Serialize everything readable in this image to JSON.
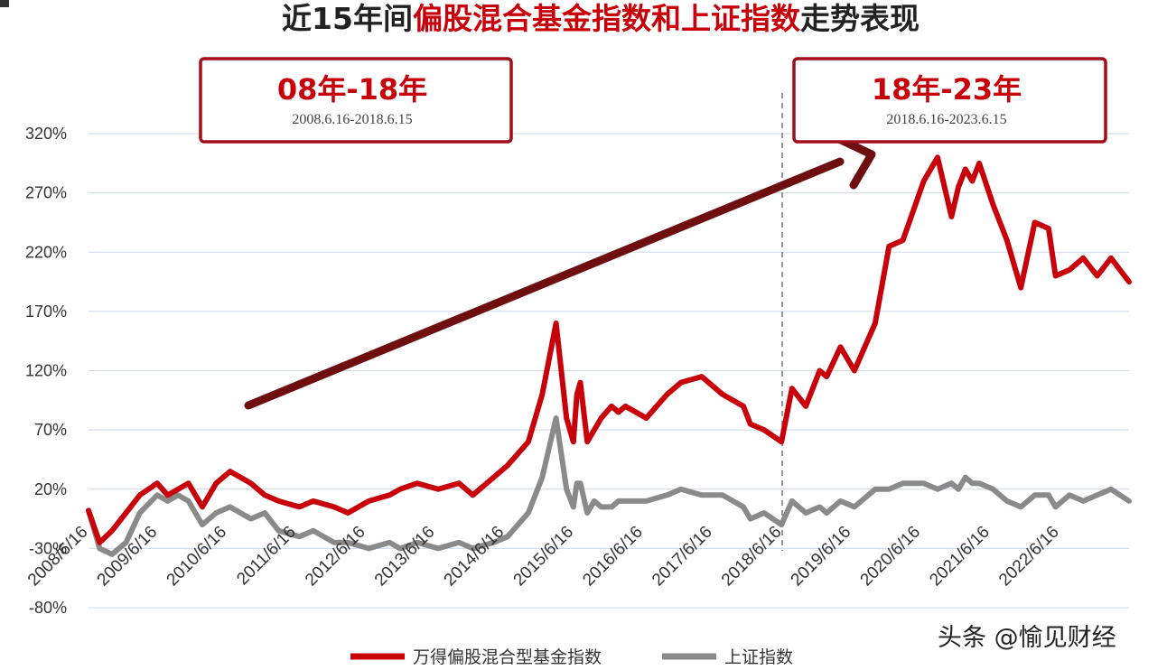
{
  "title": {
    "part1": "近15年间",
    "part2": "偏股混合基金指数和上证指数",
    "part3": "走势表现"
  },
  "annotations": {
    "period1": {
      "label": "08年-18年",
      "range": "2008.6.16-2018.6.15"
    },
    "period2": {
      "label": "18年-23年",
      "range": "2018.6.16-2023.6.15"
    }
  },
  "watermark": "头条 @愉见财经",
  "colors": {
    "fund": "#c8000a",
    "index": "#8a8a8a",
    "arrow": "#6e0e0e",
    "box": "#a00f1a",
    "grid": "#cfd8e3"
  },
  "chart_data": {
    "type": "line",
    "yticks": [
      "-80%",
      "-30%",
      "20%",
      "70%",
      "120%",
      "170%",
      "220%",
      "270%",
      "320%"
    ],
    "ylim": [
      -80,
      320
    ],
    "xticks": [
      "2008/6/16",
      "2009/6/16",
      "2010/6/16",
      "2011/6/16",
      "2012/6/16",
      "2013/6/16",
      "2014/6/16",
      "2015/6/16",
      "2016/6/16",
      "2017/6/16",
      "2018/6/16",
      "2019/6/16",
      "2020/6/16",
      "2021/6/16",
      "2022/6/16"
    ],
    "xlim": [
      2008.46,
      2023.46
    ],
    "divider_x": 2018.46,
    "grid": true,
    "legend_position": "bottom",
    "series": [
      {
        "name": "万得偏股混合型基金指数",
        "x": [
          2008.46,
          2008.62,
          2008.8,
          2009.0,
          2009.2,
          2009.45,
          2009.6,
          2009.75,
          2009.9,
          2010.1,
          2010.3,
          2010.5,
          2010.8,
          2011.0,
          2011.2,
          2011.5,
          2011.7,
          2012.0,
          2012.2,
          2012.5,
          2012.8,
          2012.95,
          2013.2,
          2013.5,
          2013.8,
          2014.0,
          2014.3,
          2014.5,
          2014.8,
          2015.0,
          2015.2,
          2015.35,
          2015.45,
          2015.5,
          2015.55,
          2015.65,
          2015.75,
          2015.85,
          2016.0,
          2016.1,
          2016.2,
          2016.5,
          2016.8,
          2017.0,
          2017.3,
          2017.6,
          2017.9,
          2018.0,
          2018.2,
          2018.45,
          2018.6,
          2018.8,
          2019.0,
          2019.1,
          2019.3,
          2019.5,
          2019.8,
          2020.0,
          2020.2,
          2020.5,
          2020.7,
          2020.9,
          2021.0,
          2021.1,
          2021.2,
          2021.3,
          2021.5,
          2021.7,
          2021.9,
          2022.1,
          2022.3,
          2022.4,
          2022.6,
          2022.8,
          2023.0,
          2023.2,
          2023.46
        ],
        "values": [
          2,
          -25,
          -15,
          0,
          15,
          25,
          15,
          20,
          25,
          5,
          25,
          35,
          25,
          15,
          10,
          5,
          10,
          5,
          0,
          10,
          15,
          20,
          25,
          20,
          25,
          15,
          30,
          40,
          60,
          100,
          160,
          80,
          60,
          100,
          110,
          60,
          70,
          80,
          90,
          85,
          90,
          80,
          100,
          110,
          115,
          100,
          90,
          75,
          70,
          60,
          105,
          90,
          120,
          115,
          140,
          120,
          160,
          225,
          230,
          280,
          300,
          250,
          275,
          290,
          280,
          295,
          260,
          230,
          190,
          245,
          240,
          200,
          205,
          215,
          200,
          215,
          195
        ]
      },
      {
        "name": "上证指数",
        "x": [
          2008.46,
          2008.62,
          2008.8,
          2009.0,
          2009.2,
          2009.45,
          2009.6,
          2009.75,
          2009.9,
          2010.1,
          2010.3,
          2010.5,
          2010.8,
          2011.0,
          2011.2,
          2011.5,
          2011.7,
          2012.0,
          2012.2,
          2012.5,
          2012.8,
          2012.95,
          2013.2,
          2013.5,
          2013.8,
          2014.0,
          2014.3,
          2014.5,
          2014.8,
          2015.0,
          2015.2,
          2015.35,
          2015.45,
          2015.5,
          2015.55,
          2015.65,
          2015.75,
          2015.85,
          2016.0,
          2016.1,
          2016.2,
          2016.5,
          2016.8,
          2017.0,
          2017.3,
          2017.6,
          2017.9,
          2018.0,
          2018.2,
          2018.45,
          2018.6,
          2018.8,
          2019.0,
          2019.1,
          2019.3,
          2019.5,
          2019.8,
          2020.0,
          2020.2,
          2020.5,
          2020.7,
          2020.9,
          2021.0,
          2021.1,
          2021.2,
          2021.3,
          2021.5,
          2021.7,
          2021.9,
          2022.1,
          2022.3,
          2022.4,
          2022.6,
          2022.8,
          2023.0,
          2023.2,
          2023.46
        ],
        "values": [
          2,
          -30,
          -35,
          -25,
          0,
          15,
          10,
          15,
          10,
          -10,
          0,
          5,
          -5,
          0,
          -15,
          -20,
          -15,
          -25,
          -25,
          -30,
          -25,
          -30,
          -25,
          -30,
          -25,
          -30,
          -25,
          -20,
          0,
          30,
          80,
          20,
          5,
          25,
          25,
          0,
          10,
          5,
          5,
          10,
          10,
          10,
          15,
          20,
          15,
          15,
          5,
          -5,
          0,
          -10,
          10,
          0,
          5,
          0,
          10,
          5,
          20,
          20,
          25,
          25,
          20,
          25,
          20,
          30,
          25,
          25,
          20,
          10,
          5,
          15,
          15,
          5,
          15,
          10,
          15,
          20,
          10
        ]
      }
    ]
  }
}
